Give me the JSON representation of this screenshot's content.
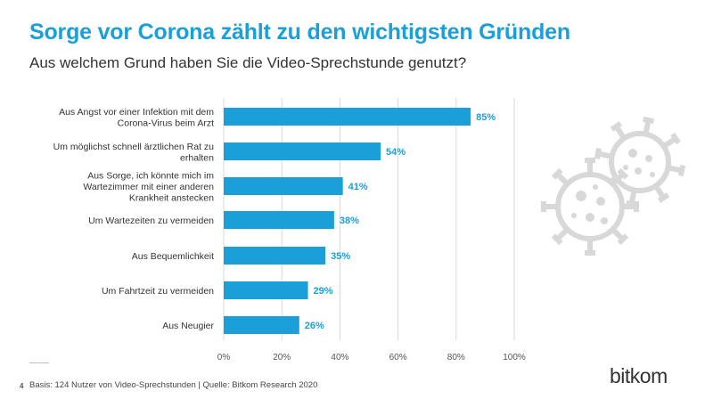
{
  "header": {
    "title": "Sorge vor Corona zählt zu den wichtigsten Gründen",
    "subtitle": "Aus welchem Grund haben Sie die Video-Sprechstunde genutzt?"
  },
  "footer": {
    "page_number": "4",
    "source": "Basis: 124 Nutzer von Video-Sprechstunden | Quelle: Bitkom Research 2020",
    "logo": "bitkom"
  },
  "colors": {
    "accent": "#1a9fd9",
    "bar": "#1a9fd9",
    "grid": "#d9d9d9",
    "icon": "#d8d8d8"
  },
  "decoration": {
    "icon": "virus-icon"
  },
  "chart_data": {
    "type": "bar",
    "orientation": "horizontal",
    "categories": [
      [
        "Aus Angst vor einer Infektion mit dem",
        "Corona-Virus beim Arzt"
      ],
      [
        "Um möglichst schnell ärztlichen Rat zu",
        "erhalten"
      ],
      [
        "Aus Sorge, ich könnte mich im",
        "Wartezimmer mit einer anderen",
        "Krankheit anstecken"
      ],
      [
        "Um Wartezeiten zu vermeiden"
      ],
      [
        "Aus Bequemlichkeit"
      ],
      [
        "Um Fahrtzeit zu vermeiden"
      ],
      [
        "Aus Neugier"
      ]
    ],
    "values": [
      85,
      54,
      41,
      38,
      35,
      29,
      26
    ],
    "value_labels": [
      "85%",
      "54%",
      "41%",
      "38%",
      "35%",
      "29%",
      "26%"
    ],
    "xlim": [
      0,
      100
    ],
    "xticks": [
      0,
      20,
      40,
      60,
      80,
      100
    ],
    "xtick_labels": [
      "0%",
      "20%",
      "40%",
      "60%",
      "80%",
      "100%"
    ],
    "grid": true
  }
}
